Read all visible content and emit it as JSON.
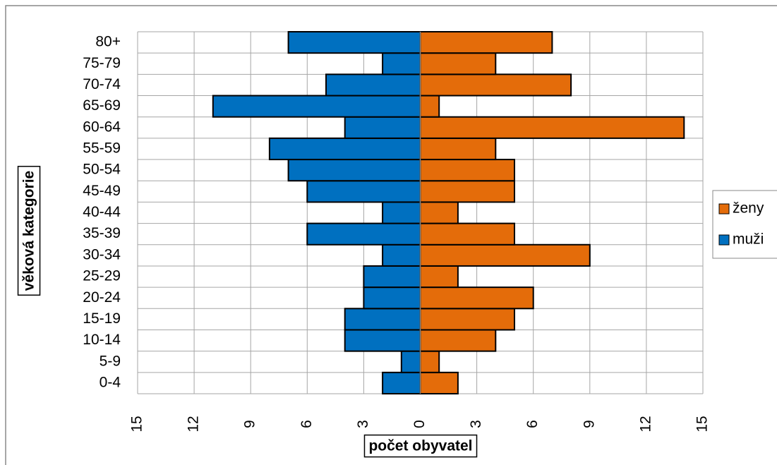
{
  "chart_data": {
    "type": "pyramid",
    "x_label": "počet obyvatel",
    "y_label": "věková kategorie",
    "categories": [
      "0-4",
      "5-9",
      "10-14",
      "15-19",
      "20-24",
      "25-29",
      "30-34",
      "35-39",
      "40-44",
      "45-49",
      "50-54",
      "55-59",
      "60-64",
      "65-69",
      "70-74",
      "75-79",
      "80+"
    ],
    "series": [
      {
        "name": "ženy",
        "color": "#e46c0a",
        "values": [
          2,
          1,
          4,
          5,
          6,
          2,
          9,
          5,
          2,
          5,
          5,
          4,
          14,
          1,
          8,
          4,
          7
        ]
      },
      {
        "name": "muži",
        "color": "#0070c0",
        "values": [
          -2,
          -1,
          -4,
          -4,
          -3,
          -3,
          -2,
          -6,
          -2,
          -6,
          -7,
          -8,
          -4,
          -11,
          -5,
          -2,
          -7
        ]
      }
    ],
    "xlim": [
      -15,
      15
    ],
    "xticks": [
      {
        "value": -15,
        "label": "15"
      },
      {
        "value": -12,
        "label": "12"
      },
      {
        "value": -9,
        "label": "9"
      },
      {
        "value": -6,
        "label": "6"
      },
      {
        "value": -3,
        "label": "3"
      },
      0,
      3,
      6,
      9,
      12,
      15
    ],
    "grid": true,
    "legend": "right"
  }
}
